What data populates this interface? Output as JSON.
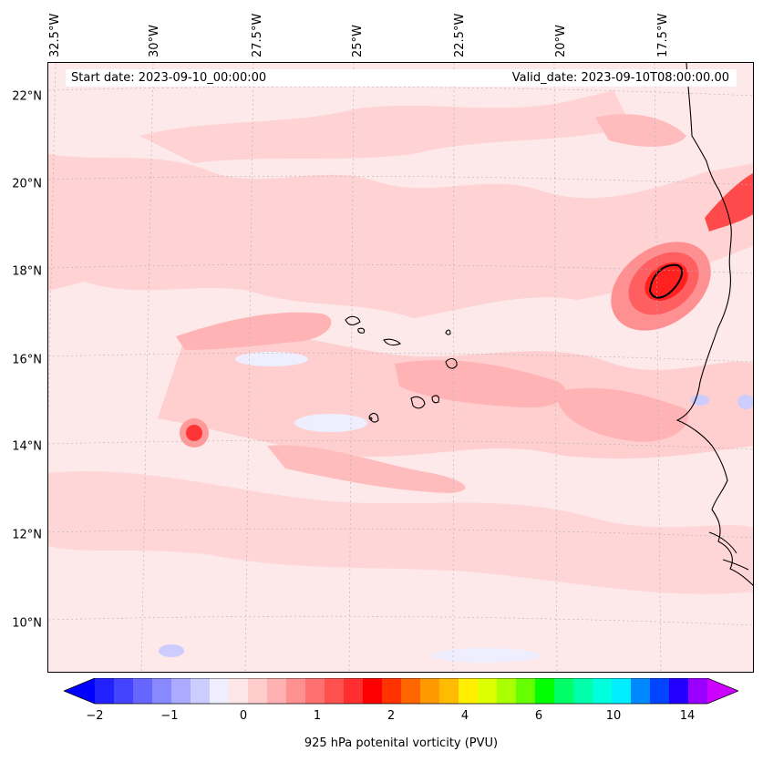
{
  "figure": {
    "start_date": "Start date: 2023-09-10_00:00:00",
    "valid_date": "Valid_date: 2023-09-10T08:00:00.00",
    "colorbar_label": "925 hPa potenital vorticity (PVU)"
  },
  "axes": {
    "latitude_labels": [
      "22°N",
      "20°N",
      "18°N",
      "16°N",
      "14°N",
      "12°N",
      "10°N"
    ],
    "longitude_labels": [
      "32.5°W",
      "30°W",
      "27.5°W",
      "25°W",
      "22.5°W",
      "20°W",
      "17.5°W"
    ]
  },
  "colorbar": {
    "tick_labels": [
      "−2",
      "−1",
      "0",
      "1",
      "2",
      "4",
      "6",
      "10",
      "14"
    ],
    "colors": [
      "#0000ff",
      "#2222ff",
      "#4444ff",
      "#6666ff",
      "#8888ff",
      "#aaaaff",
      "#ccccff",
      "#eeeeff",
      "#ffe6e6",
      "#ffcccc",
      "#ffb0b0",
      "#ff9090",
      "#ff7070",
      "#ff5050",
      "#ff2f2f",
      "#ff0000",
      "#ff3300",
      "#ff6600",
      "#ff9900",
      "#ffbb00",
      "#ffee00",
      "#ddff00",
      "#aaff00",
      "#66ff00",
      "#00ff00",
      "#00ff66",
      "#00ffaa",
      "#00ffdd",
      "#00eeff",
      "#0088ff",
      "#0044ff",
      "#2200ff",
      "#9900ff",
      "#cc00ff"
    ]
  },
  "map": {
    "background_color": "#fde9ea",
    "coastline_color": "#000000",
    "grid_color": "#b0b0b0"
  }
}
